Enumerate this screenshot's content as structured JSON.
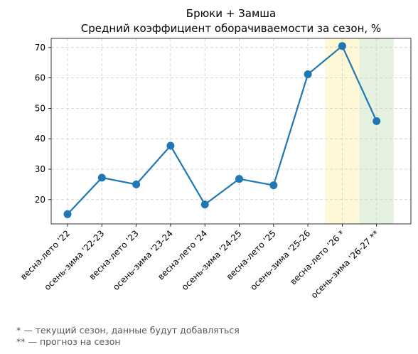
{
  "chart_data": {
    "type": "line",
    "title": "Брюки + Замша",
    "subtitle": "Средний коэффициент оборачиваемости за сезон, %",
    "xlabel": "",
    "ylabel": "",
    "categories": [
      "весна-лето '22",
      "осень-зима '22-23",
      "весна-лето '23",
      "осень-зима '23-24",
      "весна-лето '24",
      "осень-зима '24-25",
      "весна-лето '25",
      "осень-зима '25-26",
      "весна-лето '26 *",
      "осень-зима '26-27 **"
    ],
    "series": [
      {
        "values": [
          15.2,
          27.2,
          25.0,
          37.7,
          18.4,
          26.8,
          24.7,
          61.2,
          70.5,
          45.8
        ],
        "color": "#1f77b4"
      }
    ],
    "ylim": [
      12,
      73
    ],
    "yticks": [
      20,
      30,
      40,
      50,
      60,
      70
    ],
    "grid": true,
    "highlights": [
      {
        "category_index": 8,
        "color": "#fff8d6"
      },
      {
        "category_index": 9,
        "color": "#e6f2e0"
      }
    ]
  },
  "footnotes": [
    "* — текущий сезон, данные будут добавляться",
    "** — прогноз на сезон"
  ]
}
